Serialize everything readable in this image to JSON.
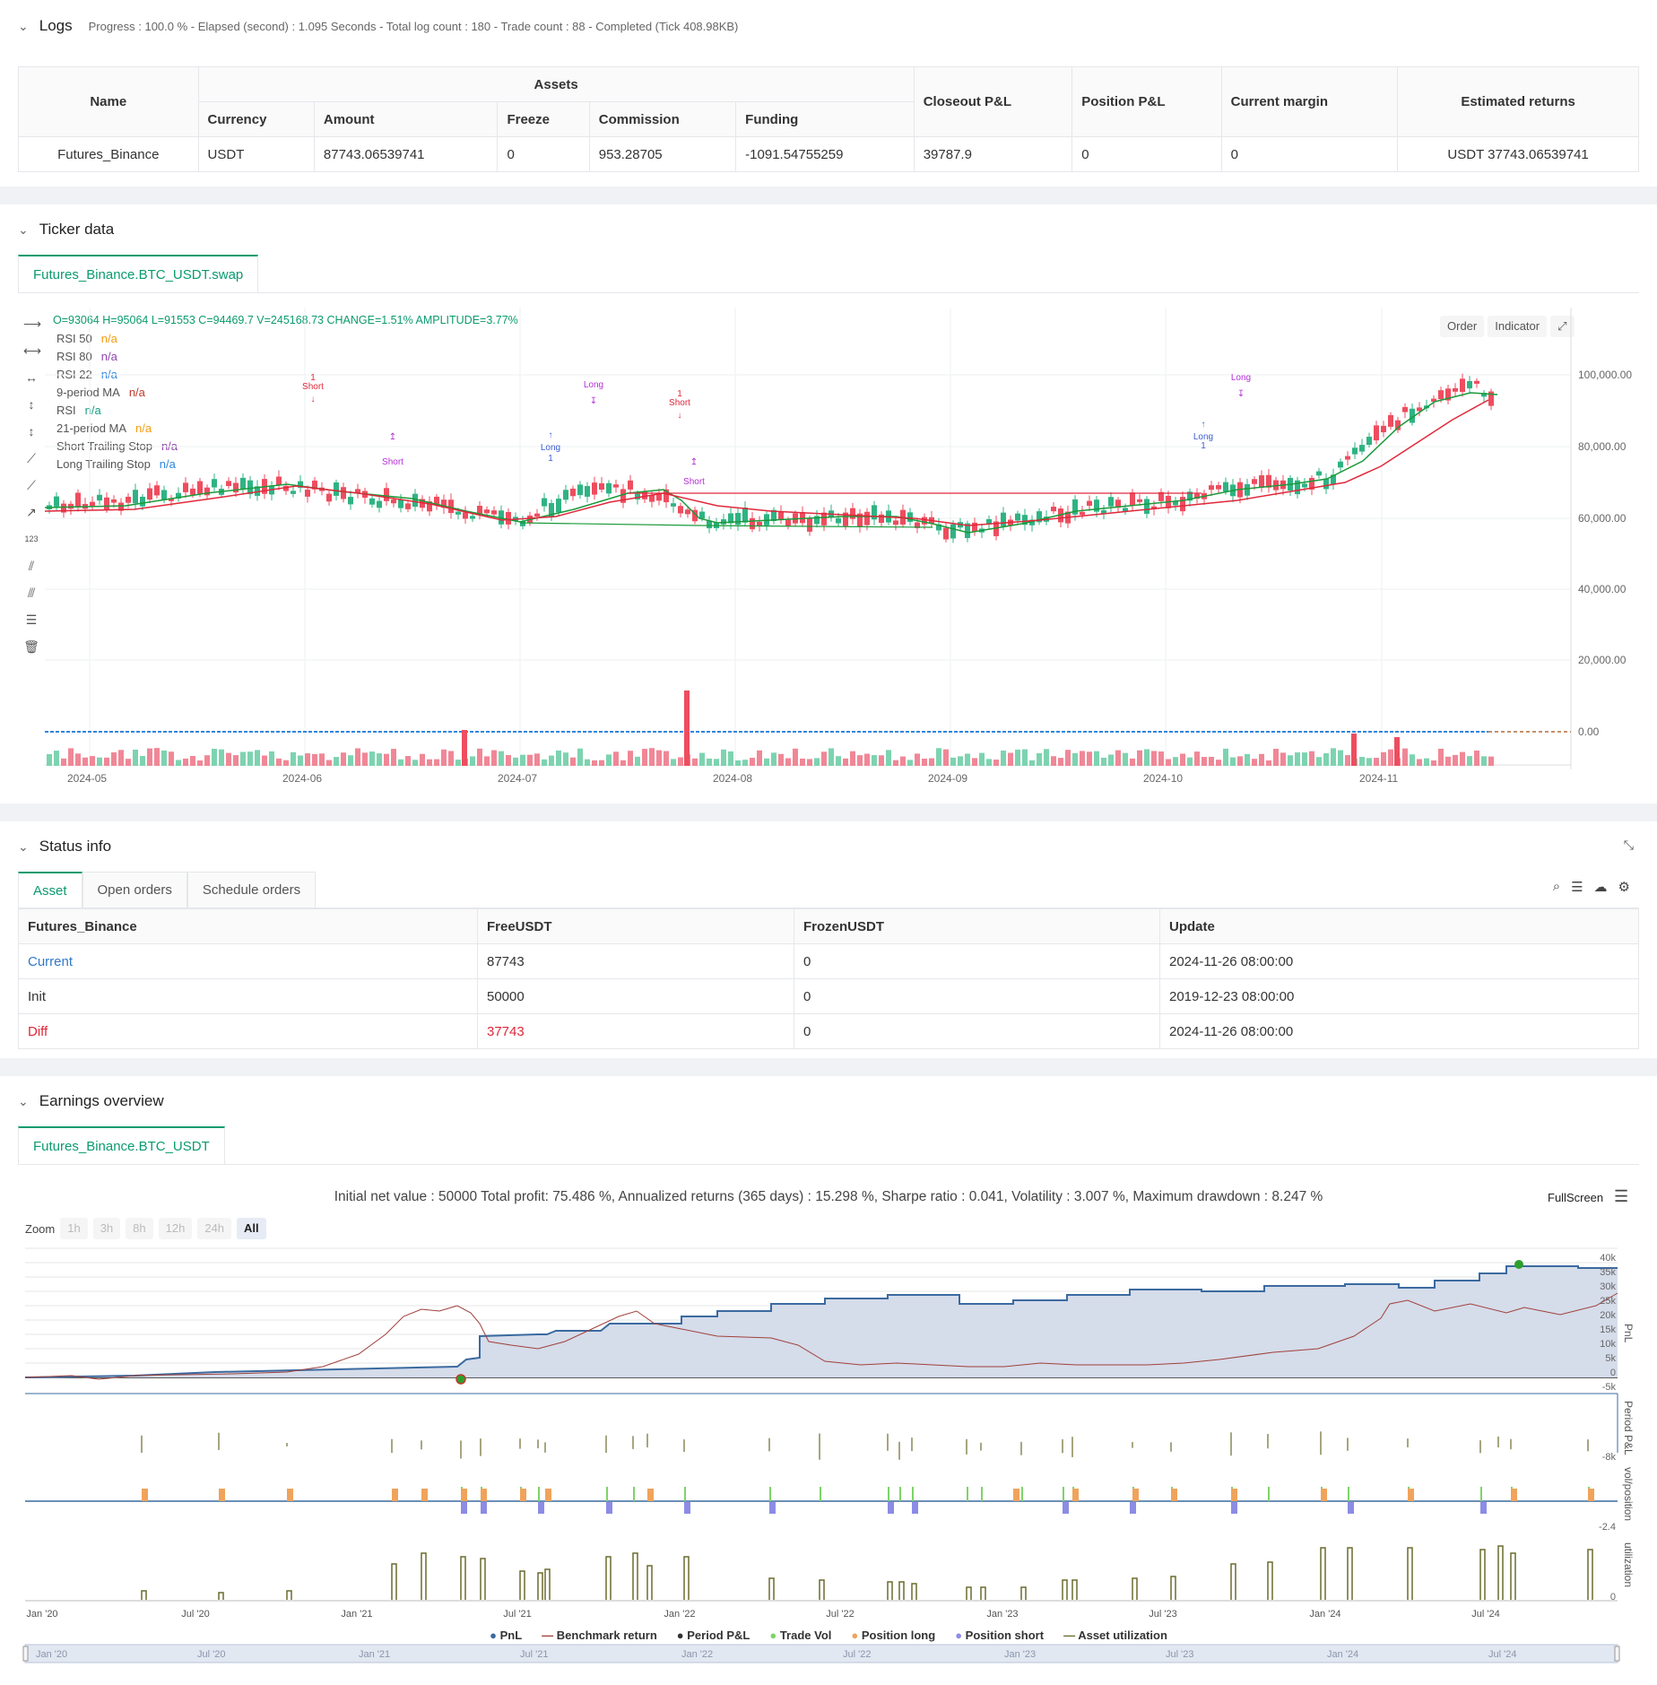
{
  "logs": {
    "title": "Logs",
    "summary": "Progress : 100.0 % - Elapsed (second) : 1.095 Seconds - Total log count : 180 - Trade count : 88 - Completed (Tick 408.98KB)",
    "headers": {
      "name": "Name",
      "assets": "Assets",
      "currency": "Currency",
      "amount": "Amount",
      "freeze": "Freeze",
      "commission": "Commission",
      "funding": "Funding",
      "closeout": "Closeout P&L",
      "position": "Position P&L",
      "margin": "Current margin",
      "returns": "Estimated returns"
    },
    "row": {
      "name": "Futures_Binance",
      "currency": "USDT",
      "amount": "87743.06539741",
      "freeze": "0",
      "commission": "953.28705",
      "funding": "-1091.54755259",
      "closeout": "39787.9",
      "position": "0",
      "margin": "0",
      "returns": "USDT 37743.06539741"
    }
  },
  "ticker": {
    "title": "Ticker data",
    "tab": "Futures_Binance.BTC_USDT.swap",
    "ohlc": "O=93064 H=95064 L=91553 C=94469.7 V=245168.73 CHANGE=1.51% AMPLITUDE=3.77%",
    "buttons": {
      "order": "Order",
      "indicator": "Indicator"
    },
    "legend": [
      {
        "label": "RSI 50",
        "value": "n/a",
        "color": "#f39c12"
      },
      {
        "label": "RSI 80",
        "value": "n/a",
        "color": "#8e44ad"
      },
      {
        "label": "RSI 22",
        "value": "n/a",
        "color": "#2e86de"
      },
      {
        "label": "9-period MA",
        "value": "n/a",
        "color": "#c0392b"
      },
      {
        "label": "RSI",
        "value": "n/a",
        "color": "#16a085"
      },
      {
        "label": "21-period MA",
        "value": "n/a",
        "color": "#f39c12"
      },
      {
        "label": "Short Trailing Stop",
        "value": "n/a",
        "color": "#8e44ad"
      },
      {
        "label": "Long Trailing Stop",
        "value": "n/a",
        "color": "#2e86de"
      }
    ],
    "y_ticks": [
      "100,000.00",
      "80,000.00",
      "60,000.00",
      "40,000.00",
      "20,000.00",
      "0.00"
    ],
    "x_ticks": [
      "2024-05",
      "2024-06",
      "2024-07",
      "2024-08",
      "2024-09",
      "2024-10",
      "2024-11"
    ],
    "markers": [
      {
        "text": "Short",
        "num": "1"
      },
      {
        "text": "Short",
        "num": ""
      },
      {
        "text": "Long",
        "num": ""
      },
      {
        "text": "Long",
        "num": "1"
      },
      {
        "text": "Short",
        "num": "1"
      },
      {
        "text": "Short",
        "num": ""
      },
      {
        "text": "Long",
        "num": ""
      },
      {
        "text": "Long",
        "num": "1"
      }
    ]
  },
  "status": {
    "title": "Status info",
    "tabs": [
      "Asset",
      "Open orders",
      "Schedule orders"
    ],
    "headers": [
      "Futures_Binance",
      "FreeUSDT",
      "FrozenUSDT",
      "Update"
    ],
    "rows": [
      {
        "label": "Current",
        "free": "87743",
        "frozen": "0",
        "update": "2024-11-26 08:00:00"
      },
      {
        "label": "Init",
        "free": "50000",
        "frozen": "0",
        "update": "2019-12-23 08:00:00"
      },
      {
        "label": "Diff",
        "free": "37743",
        "frozen": "0",
        "update": "2024-11-26 08:00:00"
      }
    ]
  },
  "earnings": {
    "title": "Earnings overview",
    "tab": "Futures_Binance.BTC_USDT",
    "summary": "Initial net value : 50000 Total profit: 75.486 %, Annualized returns (365 days) : 15.298 %, Sharpe ratio : 0.041, Volatility : 3.007 %, Maximum drawdown : 8.247 %",
    "fullscreen": "FullScreen",
    "zoom_label": "Zoom",
    "zoom_options": [
      "1h",
      "3h",
      "8h",
      "12h",
      "24h",
      "All"
    ],
    "pnl_ticks": [
      "40k",
      "35k",
      "30k",
      "25k",
      "20k",
      "15k",
      "10k",
      "5k",
      "0",
      "-5k"
    ],
    "period_ticks": [
      "-8k"
    ],
    "pos_ticks": [
      "-2.4"
    ],
    "util_ticks": [
      "0"
    ],
    "axis_titles": [
      "PnL",
      "Period P&L",
      "vol/position",
      "utilization"
    ],
    "x_ticks": [
      "Jan '20",
      "Jul '20",
      "Jan '21",
      "Jul '21",
      "Jan '22",
      "Jul '22",
      "Jan '23",
      "Jul '23",
      "Jan '24",
      "Jul '24"
    ],
    "legend": [
      {
        "label": "PnL",
        "color": "#3b6aa0"
      },
      {
        "label": "Benchmark return",
        "color": "#a0413b"
      },
      {
        "label": "Period P&L",
        "color": "#333333"
      },
      {
        "label": "Trade Vol",
        "color": "#7ed36a"
      },
      {
        "label": "Position long",
        "color": "#f0a35b"
      },
      {
        "label": "Position short",
        "color": "#8c8ce6"
      },
      {
        "label": "Asset utilization",
        "color": "#6b6b2e"
      }
    ],
    "navigator_ticks": [
      "Jan '20",
      "Jul '20",
      "Jan '21",
      "Jul '21",
      "Jan '22",
      "Jul '22",
      "Jan '23",
      "Jul '23",
      "Jan '24",
      "Jul '24"
    ]
  }
}
